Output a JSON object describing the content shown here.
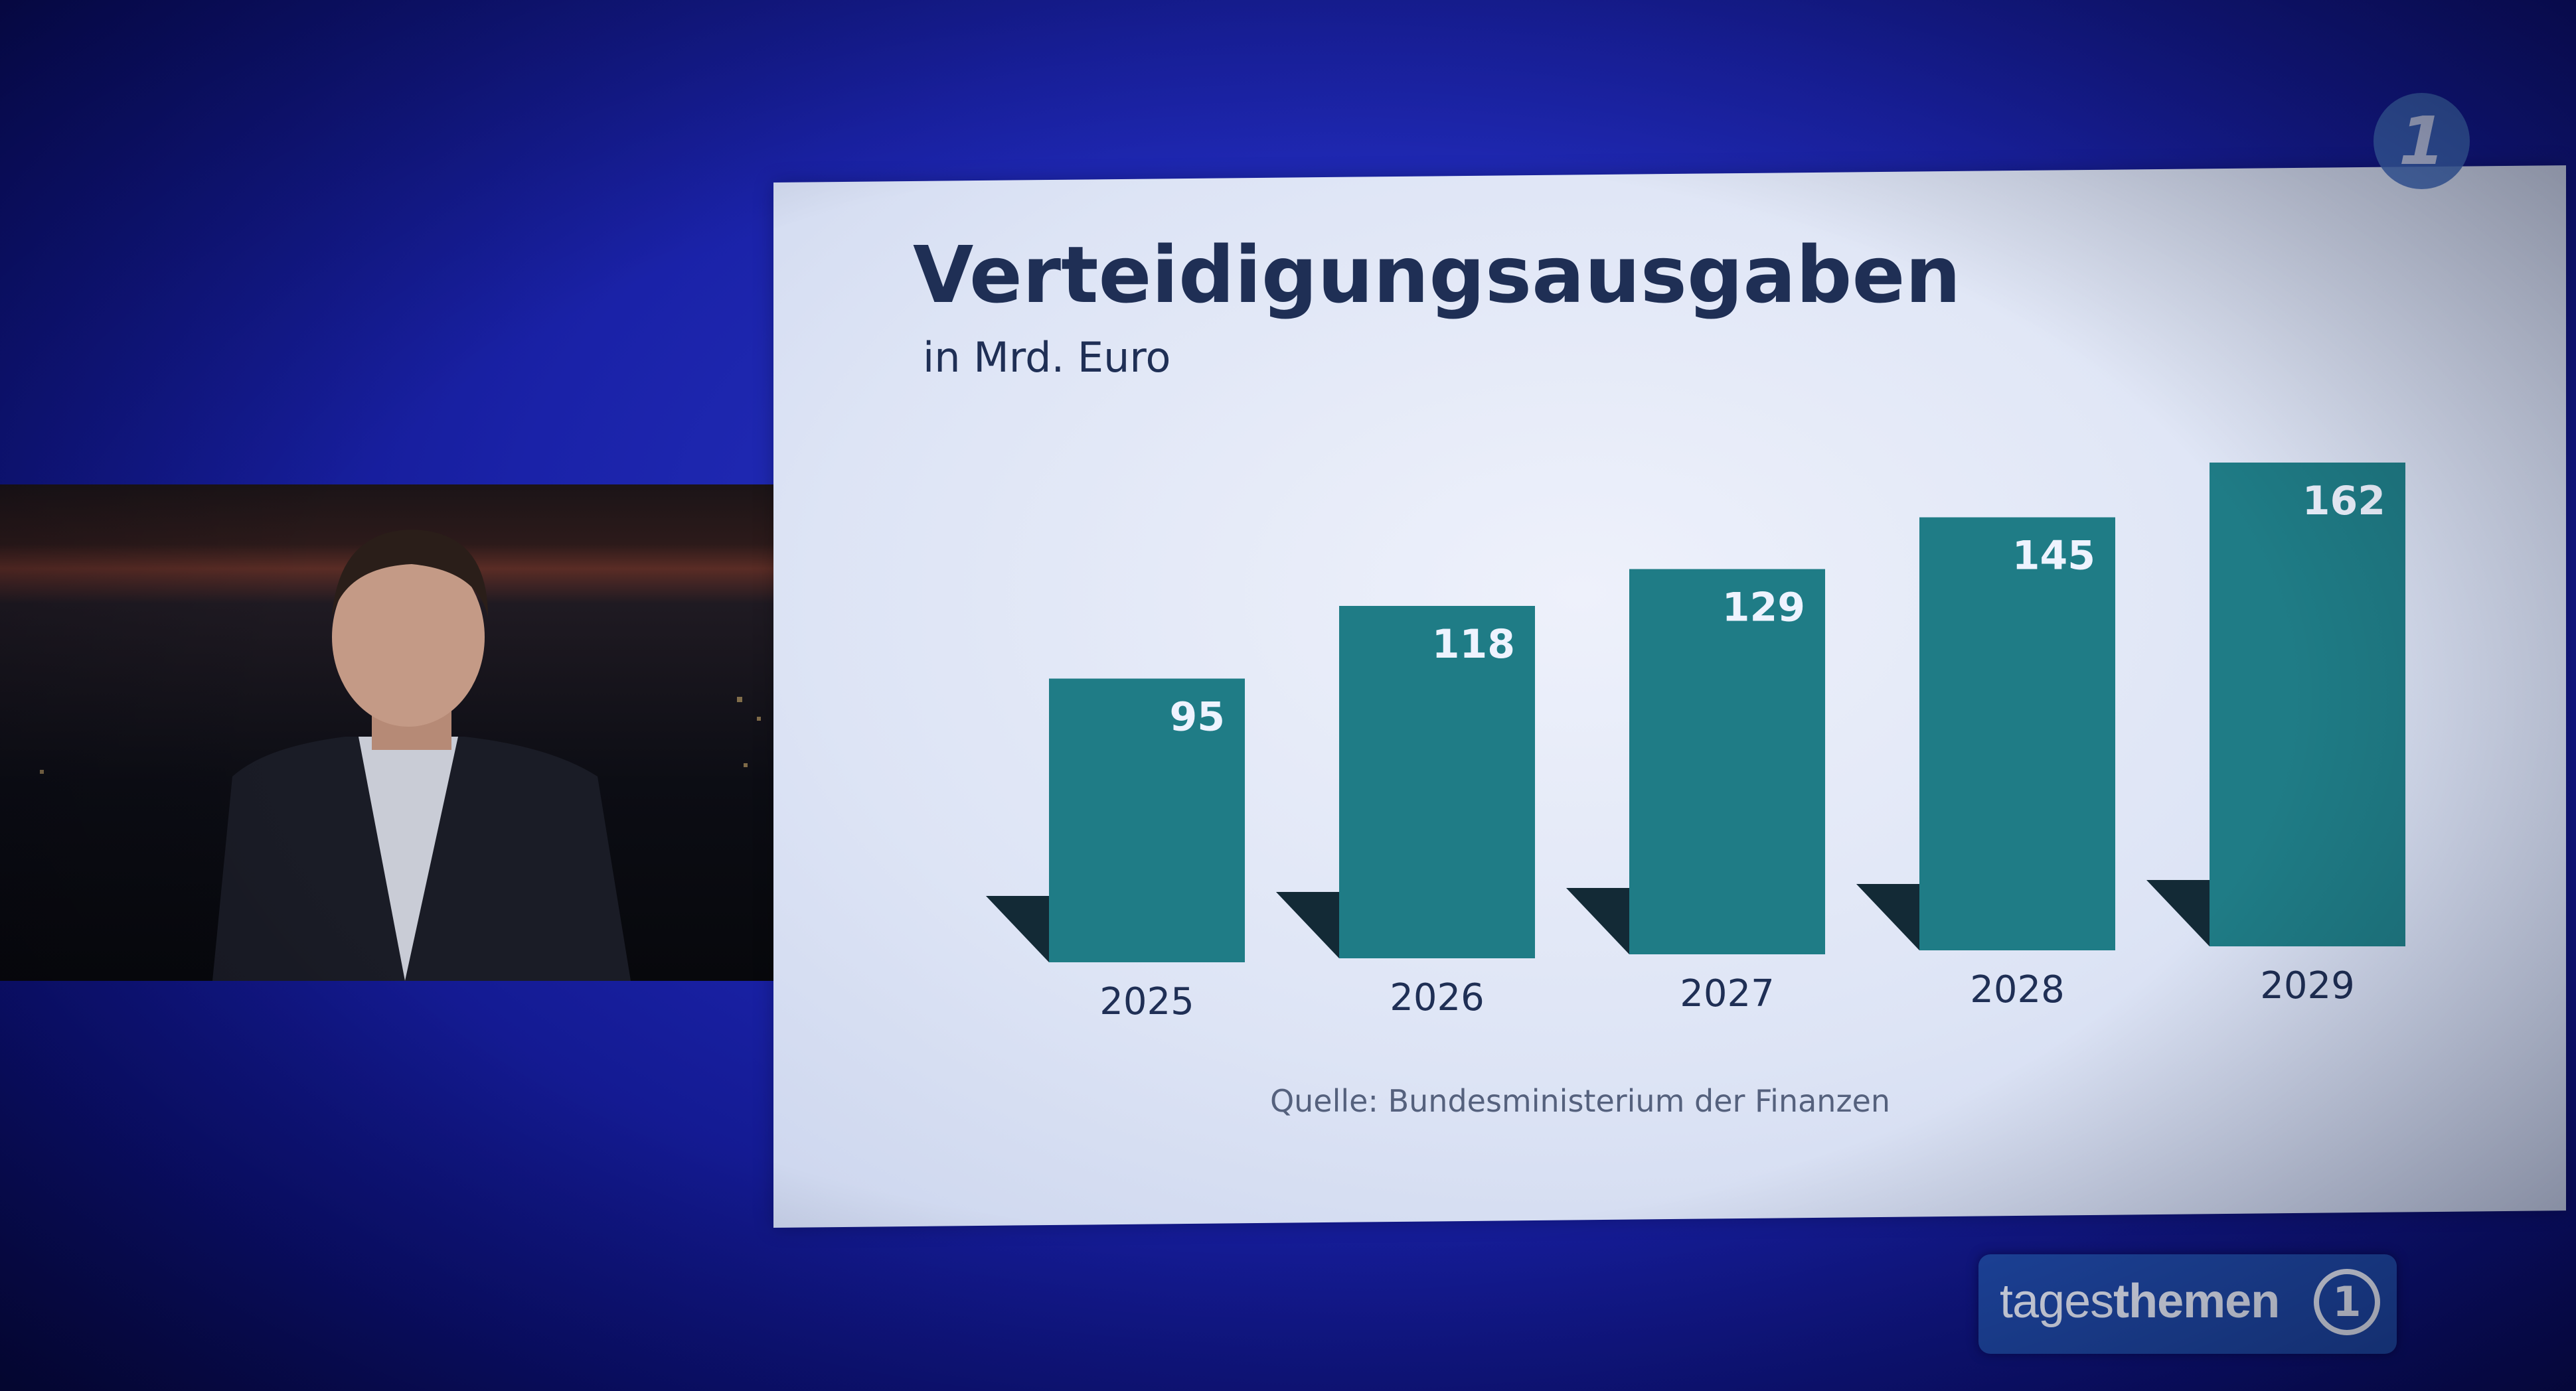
{
  "chart_data": {
    "type": "bar",
    "title": "Verteidigungsausgaben",
    "subtitle": "in Mrd. Euro",
    "categories": [
      "2025",
      "2026",
      "2027",
      "2028",
      "2029"
    ],
    "values": [
      95,
      118,
      129,
      145,
      162
    ],
    "ylim": [
      0,
      170
    ],
    "source": "Quelle: Bundesministerium der Finanzen",
    "bar_color": "#1f7c86",
    "shadow_color": "#132a36",
    "grid": false
  },
  "branding": {
    "show_name_light": "tages",
    "show_name_bold": "themen",
    "channel_logo": "1",
    "channel_logo_icon": "ard-one-icon"
  },
  "colors": {
    "background": "#1a22a8",
    "panel": "#e3e9f7",
    "title": "#1f2f55"
  }
}
